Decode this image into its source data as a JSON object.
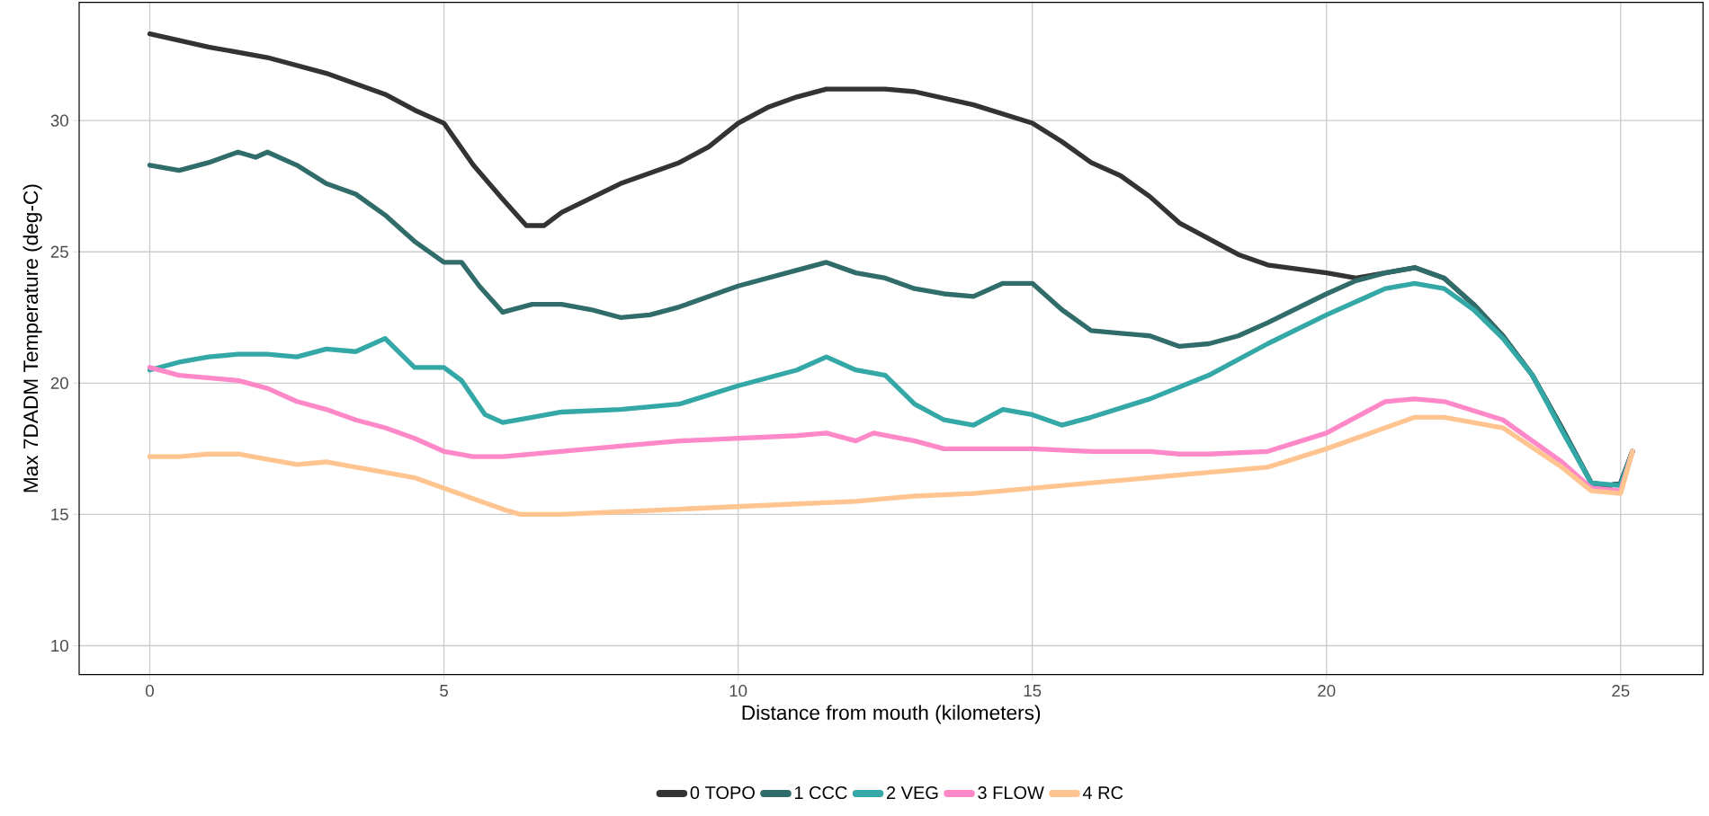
{
  "chart_data": {
    "type": "line",
    "xlabel": "Distance from mouth (kilometers)",
    "ylabel": "Max 7DADM Temperature (deg-C)",
    "xlim": [
      -1.2,
      26.4
    ],
    "ylim": [
      8.9,
      34.5
    ],
    "xticks": [
      0,
      5,
      10,
      15,
      20,
      25
    ],
    "yticks": [
      10,
      15,
      20,
      25,
      30
    ],
    "grid": true,
    "legend": "bottom",
    "line_style": "solid",
    "marker": "none",
    "series": [
      {
        "name": "0 TOPO",
        "color": "#333333",
        "x": [
          0,
          1,
          2,
          3,
          4,
          4.5,
          5,
          5.5,
          6,
          6.4,
          6.7,
          7,
          8,
          9,
          9.5,
          10,
          10.5,
          11,
          11.5,
          12,
          12.5,
          13,
          14,
          15,
          15.5,
          16,
          16.5,
          17,
          17.5,
          18,
          18.5,
          19,
          20,
          20.5,
          21,
          21.5,
          22,
          22.5,
          23,
          23.5,
          24,
          24.5,
          24.8,
          25,
          25.2
        ],
        "values": [
          33.3,
          32.8,
          32.4,
          31.8,
          31.0,
          30.4,
          29.9,
          28.3,
          27.0,
          26.0,
          26.0,
          26.5,
          27.6,
          28.4,
          29.0,
          29.9,
          30.5,
          30.9,
          31.2,
          31.2,
          31.2,
          31.1,
          30.6,
          29.9,
          29.2,
          28.4,
          27.9,
          27.1,
          26.1,
          25.5,
          24.9,
          24.5,
          24.2,
          24.0,
          24.2,
          24.4,
          24.0,
          23.0,
          21.8,
          20.3,
          18.3,
          16.2,
          16.1,
          16.2,
          17.4
        ]
      },
      {
        "name": "1 CCC",
        "color": "#306c6a",
        "x": [
          0,
          0.5,
          1,
          1.5,
          1.8,
          2,
          2.5,
          3,
          3.5,
          4,
          4.5,
          5,
          5.3,
          5.6,
          6,
          6.5,
          7,
          7.5,
          8,
          8.5,
          9,
          10,
          11,
          11.5,
          12,
          12.5,
          13,
          13.5,
          14,
          14.5,
          15,
          15.3,
          15.5,
          16,
          16.5,
          17,
          17.5,
          18,
          18.5,
          19,
          20,
          20.5,
          21,
          21.5,
          22,
          22.5,
          23,
          23.5,
          24,
          24.5,
          24.8,
          25,
          25.2
        ],
        "values": [
          28.3,
          28.1,
          28.4,
          28.8,
          28.6,
          28.8,
          28.3,
          27.6,
          27.2,
          26.4,
          25.4,
          24.6,
          24.6,
          23.7,
          22.7,
          23.0,
          23.0,
          22.8,
          22.5,
          22.6,
          22.9,
          23.7,
          24.3,
          24.6,
          24.2,
          24.0,
          23.6,
          23.4,
          23.3,
          23.8,
          23.8,
          23.2,
          22.8,
          22.0,
          21.9,
          21.8,
          21.4,
          21.5,
          21.8,
          22.3,
          23.4,
          23.9,
          24.2,
          24.4,
          24.0,
          23.0,
          21.8,
          20.3,
          18.3,
          16.2,
          16.1,
          16.2,
          17.4
        ]
      },
      {
        "name": "2 VEG",
        "color": "#33a8a6",
        "x": [
          0,
          0.5,
          1,
          1.5,
          2,
          2.5,
          3,
          3.5,
          4,
          4.5,
          5,
          5.3,
          5.7,
          6,
          6.5,
          7,
          8,
          9,
          10,
          11,
          11.5,
          12,
          12.5,
          13,
          13.5,
          14,
          14.5,
          15,
          15.5,
          16,
          17,
          18,
          19,
          20,
          21,
          21.5,
          22,
          22.5,
          23,
          23.5,
          24,
          24.5,
          25,
          25.2
        ],
        "values": [
          20.5,
          20.8,
          21.0,
          21.1,
          21.1,
          21.0,
          21.3,
          21.2,
          21.7,
          20.6,
          20.6,
          20.1,
          18.8,
          18.5,
          18.7,
          18.9,
          19.0,
          19.2,
          19.9,
          20.5,
          21.0,
          20.5,
          20.3,
          19.2,
          18.6,
          18.4,
          19.0,
          18.8,
          18.4,
          18.7,
          19.4,
          20.3,
          21.5,
          22.6,
          23.6,
          23.8,
          23.6,
          22.8,
          21.7,
          20.3,
          18.2,
          16.2,
          16.1,
          17.4
        ]
      },
      {
        "name": "3 FLOW",
        "color": "#ff88c8",
        "x": [
          0,
          0.5,
          1,
          1.5,
          2,
          2.5,
          3,
          3.5,
          4,
          4.5,
          5,
          5.5,
          6,
          7,
          8,
          9,
          10,
          11,
          11.5,
          12,
          12.3,
          13,
          13.5,
          15,
          16,
          17,
          17.5,
          18,
          19,
          20,
          21,
          21.5,
          22,
          23,
          24,
          24.5,
          25,
          25.2
        ],
        "values": [
          20.6,
          20.3,
          20.2,
          20.1,
          19.8,
          19.3,
          19.0,
          18.6,
          18.3,
          17.9,
          17.4,
          17.2,
          17.2,
          17.4,
          17.6,
          17.8,
          17.9,
          18.0,
          18.1,
          17.8,
          18.1,
          17.8,
          17.5,
          17.5,
          17.4,
          17.4,
          17.3,
          17.3,
          17.4,
          18.1,
          19.3,
          19.4,
          19.3,
          18.6,
          17.0,
          16.0,
          15.9,
          17.4
        ]
      },
      {
        "name": "4 RC",
        "color": "#ffc490",
        "x": [
          0,
          0.5,
          1,
          1.5,
          2,
          2.5,
          3,
          3.5,
          4,
          4.5,
          5,
          5.5,
          6,
          6.3,
          7,
          8,
          9,
          10,
          11,
          12,
          12.5,
          13,
          14,
          15,
          16,
          17,
          18,
          19,
          20,
          21,
          21.5,
          22,
          23,
          24,
          24.5,
          25,
          25.2
        ],
        "values": [
          17.2,
          17.2,
          17.3,
          17.3,
          17.1,
          16.9,
          17.0,
          16.8,
          16.6,
          16.4,
          16.0,
          15.6,
          15.2,
          15.0,
          15.0,
          15.1,
          15.2,
          15.3,
          15.4,
          15.5,
          15.6,
          15.7,
          15.8,
          16.0,
          16.2,
          16.4,
          16.6,
          16.8,
          17.5,
          18.3,
          18.7,
          18.7,
          18.3,
          16.8,
          15.9,
          15.8,
          17.4
        ]
      }
    ]
  }
}
